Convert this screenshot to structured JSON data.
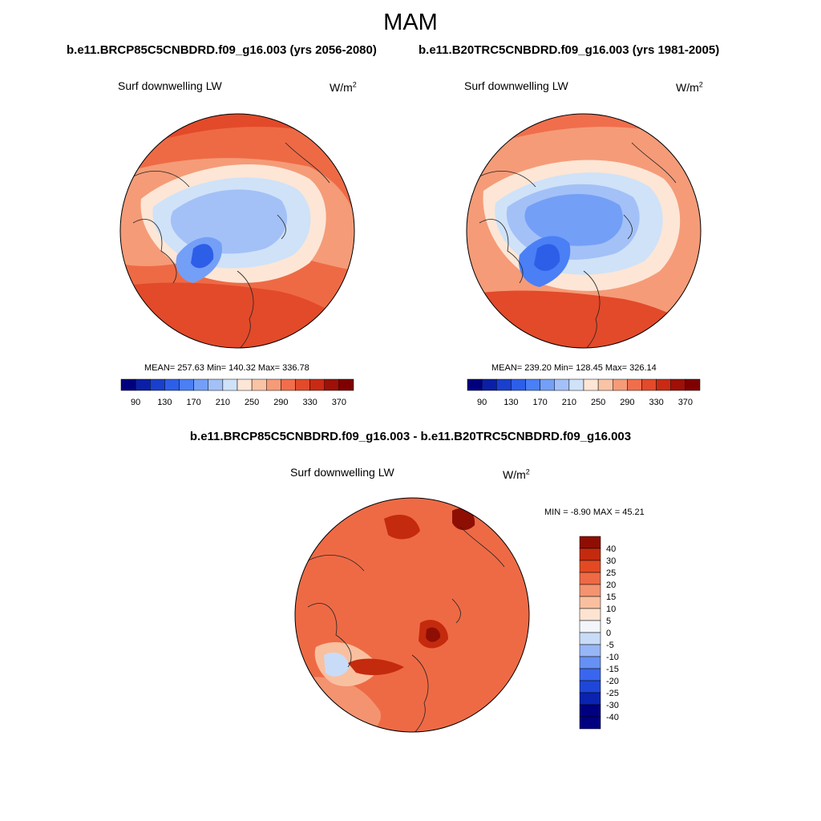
{
  "title": "MAM",
  "panels": [
    {
      "case": "b.e11.BRCP85C5CNBDRD.f09_g16.003 (yrs 2056-2080)",
      "variable": "Surf downwelling LW",
      "unit_base": "W/m",
      "unit_exp": "2",
      "stats": "MEAN= 257.63  Min= 140.32  Max= 336.78",
      "colorbar_labels": [
        "90",
        "130",
        "170",
        "210",
        "250",
        "290",
        "330",
        "370"
      ]
    },
    {
      "case": "b.e11.B20TRC5CNBDRD.f09_g16.003 (yrs 1981-2005)",
      "variable": "Surf downwelling LW",
      "unit_base": "W/m",
      "unit_exp": "2",
      "stats": "MEAN= 239.20  Min= 128.45  Max= 326.14",
      "colorbar_labels": [
        "90",
        "130",
        "170",
        "210",
        "250",
        "290",
        "330",
        "370"
      ]
    }
  ],
  "difference": {
    "title": "b.e11.BRCP85C5CNBDRD.f09_g16.003 - b.e11.B20TRC5CNBDRD.f09_g16.003",
    "variable": "Surf downwelling LW",
    "unit_base": "W/m",
    "unit_exp": "2",
    "stats": "MIN =  -8.90 MAX =  45.21",
    "colorbar_labels": [
      "40",
      "30",
      "25",
      "20",
      "15",
      "10",
      "5",
      "0",
      "-5",
      "-10",
      "-15",
      "-20",
      "-25",
      "-30",
      "-40"
    ]
  },
  "palette": {
    "abs": [
      "#00007f",
      "#0b1fa6",
      "#1a3fcc",
      "#2d5ee8",
      "#4a7ff5",
      "#749ff7",
      "#a3c1f7",
      "#cfe2f8",
      "#fde6d6",
      "#f9c4a6",
      "#f59b78",
      "#f06e4c",
      "#e24a2a",
      "#c92a14",
      "#9e1008",
      "#7f0000"
    ],
    "diff": [
      "#000080",
      "#0a23b0",
      "#1e46d8",
      "#3a66ef",
      "#6690f4",
      "#97b6f6",
      "#c8dcf8",
      "#f2f6fb",
      "#fde4d2",
      "#f9c0a0",
      "#f49370",
      "#ee6a45",
      "#e34a24",
      "#c42a0e",
      "#8f0e04"
    ]
  }
}
